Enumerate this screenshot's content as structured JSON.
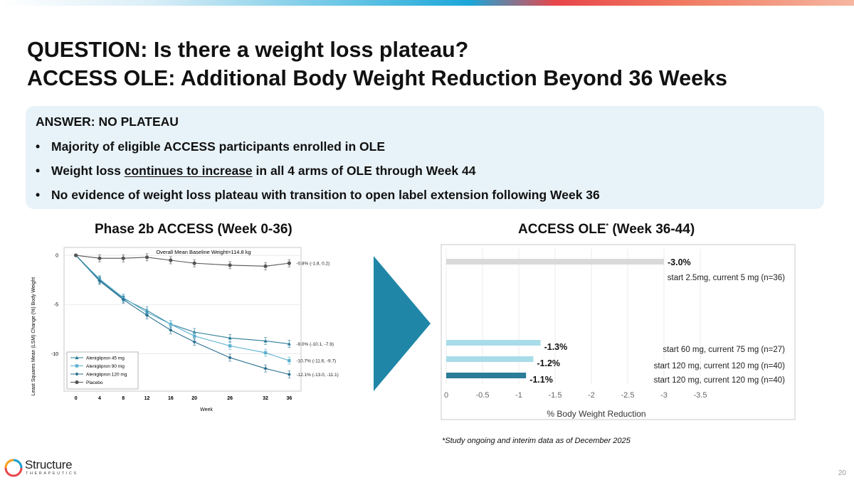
{
  "slide": {
    "title_line1": "QUESTION: Is there a weight loss plateau?",
    "title_line2": "ACCESS OLE: Additional Body Weight Reduction Beyond 36 Weeks",
    "answer": {
      "heading": "ANSWER: NO PLATEAU",
      "bullet1": "Majority of eligible ACCESS participants enrolled in OLE",
      "bullet2_pre": "Weight loss ",
      "bullet2_underlined": "continues to increase",
      "bullet2_post": " in all 4 arms of OLE through Week 44",
      "bullet3": "No evidence of weight loss plateau with transition to open label extension following Week 36"
    },
    "left_panel_title": "Phase 2b ACCESS (Week 0-36)",
    "right_panel_title": "ACCESS OLE",
    "right_panel_title_sup": "*",
    "right_panel_title_suffix": " (Week 36-44)",
    "footnote": "*Study ongoing and interim data as of December 2025",
    "logo_name": "Structure",
    "logo_sub": "THERAPEUTICS",
    "page_number": "20",
    "colors": {
      "accent": "#1f86a8",
      "light_blue": "#a8dce8",
      "gray_bar": "#d9d9d9",
      "dark_teal": "#2b7d98"
    }
  },
  "chart_data": [
    {
      "type": "line",
      "title": "Overall Mean Baseline Weight=114.8 kg",
      "xlabel": "Week",
      "ylabel": "Least Squares Mean (LSM) Change (%) Body Weight",
      "x": [
        0,
        4,
        8,
        12,
        16,
        20,
        26,
        32,
        36
      ],
      "xlim": [
        -2,
        38
      ],
      "ylim": [
        -13.8,
        0.8
      ],
      "yticks": [
        0,
        -5,
        -10
      ],
      "yticklabels": [
        "0",
        "-5",
        "-10"
      ],
      "legend_position": "bottom-left",
      "series": [
        {
          "name": "Aleniglipron 45 mg",
          "color": "#2b7d98",
          "marker": "triangle",
          "values": [
            0,
            -2.5,
            -4.4,
            -5.6,
            -7.0,
            -7.8,
            -8.4,
            -8.7,
            -9.0
          ],
          "end_label": "-9.0% (-10.1, -7.9)"
        },
        {
          "name": "Aleniglipron 90 mg",
          "color": "#5bb0cf",
          "marker": "square",
          "values": [
            0,
            -2.4,
            -4.3,
            -5.8,
            -7.0,
            -8.2,
            -9.2,
            -9.9,
            -10.7
          ],
          "end_label": "-10.7% (-11.6, -9.7)"
        },
        {
          "name": "Aleniglipron 120 mg",
          "color": "#2a6f8f",
          "marker": "diamond",
          "values": [
            0,
            -2.6,
            -4.5,
            -6.1,
            -7.6,
            -8.8,
            -10.4,
            -11.5,
            -12.1
          ],
          "end_label": "-12.1% (-13.0, -11.1)"
        },
        {
          "name": "Placebo",
          "color": "#555555",
          "marker": "circle",
          "values": [
            0,
            -0.3,
            -0.3,
            -0.2,
            -0.5,
            -0.8,
            -1.0,
            -1.1,
            -0.8
          ],
          "end_label": "-0.8% (-1.8, 0.2)"
        }
      ]
    },
    {
      "type": "bar",
      "orientation": "horizontal",
      "xlabel": "% Body Weight Reduction",
      "xlim": [
        0,
        -3.5
      ],
      "xticks": [
        0,
        -0.5,
        -1,
        -1.5,
        -2,
        -2.5,
        -3,
        -3.5
      ],
      "xticklabels": [
        "0",
        "-0.5",
        "-1",
        "-1.5",
        "-2",
        "-2.5",
        "-3",
        "-3.5"
      ],
      "bars": [
        {
          "value": -3.0,
          "value_label": "-3.0%",
          "arm": "start 2.5mg, current 5 mg (n=36)",
          "color": "#d9d9d9"
        },
        {
          "value": -1.3,
          "value_label": "-1.3%",
          "arm": "start 60 mg, current 75 mg (n=27)",
          "color": "#a8dce8"
        },
        {
          "value": -1.2,
          "value_label": "-1.2%",
          "arm": "start 120 mg, current 120 mg (n=40)",
          "color": "#a8dce8"
        },
        {
          "value": -1.1,
          "value_label": "-1.1%",
          "arm": "start 120 mg, current 120 mg (n=40)",
          "color": "#2b7d98"
        }
      ]
    }
  ]
}
